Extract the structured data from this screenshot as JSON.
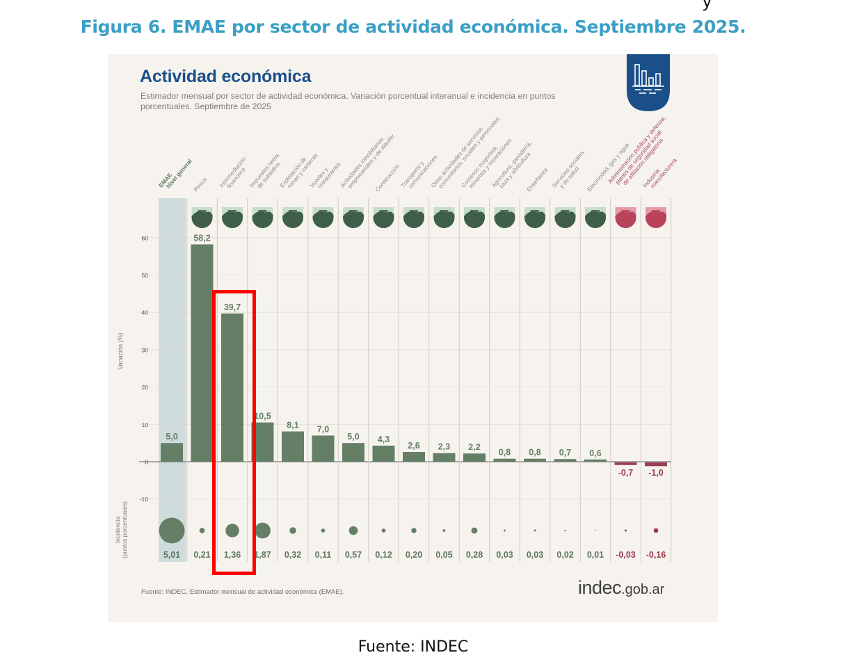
{
  "figure_title": "Figura 6. EMAE por sector de actividad económica. Septiembre 2025.",
  "top_glyph": "y",
  "card": {
    "title": "Actividad económica",
    "subtitle": "Estimador mensual por sector de actividad económica. Variación porcentual interanual e incidencia en puntos porcentuales. Septiembre de 2025",
    "source": "Fuente: INDEC, Estimador mensual de actividad económica (EMAE).",
    "logo_main": "indec",
    "logo_suffix": ".gob.ar",
    "badge_icon": "bar-chart-icon"
  },
  "footer": "Fuente: INDEC",
  "colors": {
    "figure_title": "#3a9fc3",
    "card_title": "#1b4f8a",
    "positive_bar": "#647f66",
    "negative_bar": "#9b3c50",
    "emae_column_bg": "#cfdcdc",
    "highlight_box": "#ff0000",
    "badge": "#1b4f8a"
  },
  "highlight": {
    "category_index": 2,
    "label": "Intermediación financiera"
  },
  "chart_data": {
    "type": "bar",
    "title": "Actividad económica",
    "subtitle": "Estimador mensual por sector de actividad económica. Variación porcentual interanual e incidencia en puntos porcentuales. Septiembre de 2025",
    "ylabel": "Variación (%)",
    "ylabel_secondary": "Incidencia (puntos porcentuales)",
    "ylim": [
      -10,
      60
    ],
    "yticks": [
      60,
      50,
      40,
      30,
      20,
      10,
      0,
      -10
    ],
    "grid": true,
    "categories": [
      "EMAE Nivel general",
      "Pesca",
      "Intermediación financiera",
      "Impuestos netos de subsidios",
      "Explotación de minas y canteras",
      "Hoteles y restaurantes",
      "Actividades inmobiliarias, empresariales y de alquiler",
      "Construcción",
      "Transporte y comunicaciones",
      "Otras actividades de servicios comunitarios, sociales y personales",
      "Comercio mayorista, minorista y reparaciones",
      "Agricultura, ganadería, caza y silvicultura",
      "Enseñanza",
      "Servicios sociales y de salud",
      "Electricidad, gas y agua",
      "Administración pública y defensa; planes de seguridad social de afiliación obligatoria",
      "Industria manufacturera"
    ],
    "category_label_lines": [
      [
        "EMAE",
        "Nivel general"
      ],
      [
        "Pesca"
      ],
      [
        "Intermediación",
        "financiera"
      ],
      [
        "Impuestos netos",
        "de subsidios"
      ],
      [
        "Explotación de",
        "minas y canteras"
      ],
      [
        "Hoteles y",
        "restaurantes"
      ],
      [
        "Actividades inmobiliarias,",
        "empresariales y de alquiler"
      ],
      [
        "Construcción"
      ],
      [
        "Transporte y",
        "comunicaciones"
      ],
      [
        "Otras actividades de servicios",
        "comunitarios, sociales y personales"
      ],
      [
        "Comercio mayorista,",
        "minorista y reparaciones"
      ],
      [
        "Agricultura, ganadería,",
        "caza y silvicultura"
      ],
      [
        "Enseñanza"
      ],
      [
        "Servicios sociales",
        "y de salud"
      ],
      [
        "Electricidad, gas y agua"
      ],
      [
        "Administración pública y defensa;",
        "planes de seguridad social",
        "de afiliación obligatoria"
      ],
      [
        "Industria",
        "manufacturera"
      ]
    ],
    "icons": [
      "none",
      "fishing-boat-icon",
      "bank-building-icon",
      "tax-documents-icon",
      "oil-pump-icon",
      "hotel-icon",
      "real-estate-icon",
      "construction-truck-icon",
      "transport-communications-icon",
      "theater-masks-icon",
      "shopping-cart-icon",
      "cow-icon",
      "school-icon",
      "health-services-icon",
      "electricity-tower-icon",
      "government-building-icon",
      "gears-icon"
    ],
    "series": [
      {
        "name": "Variación (%)",
        "values": [
          5.0,
          58.2,
          39.7,
          10.5,
          8.1,
          7.0,
          5.0,
          4.3,
          2.6,
          2.3,
          2.2,
          0.8,
          0.8,
          0.7,
          0.6,
          -0.7,
          -1.0
        ],
        "labels": [
          "5,0",
          "58,2",
          "39,7",
          "10,5",
          "8,1",
          "7,0",
          "5,0",
          "4,3",
          "2,6",
          "2,3",
          "2,2",
          "0,8",
          "0,8",
          "0,7",
          "0,6",
          "-0,7",
          "-1,0"
        ]
      },
      {
        "name": "Incidencia (puntos porcentuales)",
        "values": [
          5.01,
          0.21,
          1.36,
          1.87,
          0.32,
          0.11,
          0.57,
          0.12,
          0.2,
          0.05,
          0.28,
          0.03,
          0.03,
          0.02,
          0.01,
          -0.03,
          -0.16
        ],
        "labels": [
          "5,01",
          "0,21",
          "1,36",
          "1,87",
          "0,32",
          "0,11",
          "0,57",
          "0,12",
          "0,20",
          "0,05",
          "0,28",
          "0,03",
          "0,03",
          "0,02",
          "0,01",
          "-0,03",
          "-0,16"
        ]
      }
    ]
  }
}
